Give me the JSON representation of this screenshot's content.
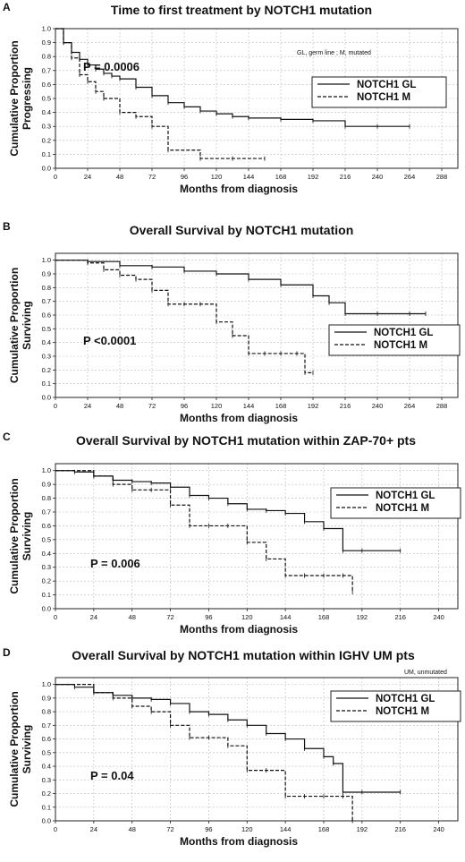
{
  "chart_data": [
    {
      "type": "line",
      "panel": "A",
      "title": "Time to first treatment by NOTCH1 mutation",
      "xlabel": "Months from diagnosis",
      "ylabel": "Cumulative Proportion Progressing",
      "ylabel_lines": [
        "Cumulative Proportion",
        "Progressing"
      ],
      "xlim": [
        0,
        300
      ],
      "x_ticks": [
        0,
        24,
        48,
        72,
        96,
        120,
        144,
        168,
        192,
        216,
        240,
        264,
        288
      ],
      "ylim": [
        0,
        1
      ],
      "y_ticks": [
        "0.0",
        "0.1",
        "0.2",
        "0.3",
        "0.4",
        "0.5",
        "0.6",
        "0.7",
        "0.8",
        "0.9",
        "1.0"
      ],
      "note": "GL, germ line ; M, mutated",
      "p_value": "P = 0.0006",
      "grid": true,
      "legend_position": "upper right",
      "series": [
        {
          "name": "NOTCH1 GL",
          "style": "solid",
          "x": [
            0,
            6,
            12,
            18,
            24,
            30,
            36,
            42,
            48,
            60,
            72,
            84,
            96,
            108,
            120,
            132,
            144,
            168,
            192,
            216,
            240,
            264
          ],
          "y": [
            1.0,
            0.9,
            0.83,
            0.78,
            0.74,
            0.71,
            0.68,
            0.66,
            0.64,
            0.58,
            0.52,
            0.47,
            0.44,
            0.41,
            0.39,
            0.37,
            0.36,
            0.35,
            0.34,
            0.3,
            0.3,
            0.3
          ]
        },
        {
          "name": "NOTCH1 M",
          "style": "dashed",
          "x": [
            0,
            6,
            12,
            18,
            24,
            30,
            36,
            48,
            60,
            72,
            84,
            108,
            132,
            156
          ],
          "y": [
            1.0,
            0.9,
            0.79,
            0.67,
            0.62,
            0.55,
            0.5,
            0.4,
            0.37,
            0.3,
            0.13,
            0.07,
            0.07,
            0.07
          ]
        }
      ]
    },
    {
      "type": "line",
      "panel": "B",
      "title": "Overall Survival by NOTCH1 mutation",
      "xlabel": "Months from diagnosis",
      "ylabel": "Cumulative Proportion Surviving",
      "ylabel_lines": [
        "Cumulative Proportion",
        "Surviving"
      ],
      "xlim": [
        0,
        300
      ],
      "x_ticks": [
        0,
        24,
        48,
        72,
        96,
        120,
        144,
        168,
        192,
        216,
        240,
        264,
        288
      ],
      "ylim": [
        0,
        1.05
      ],
      "y_ticks": [
        "0.0",
        "0.1",
        "0.2",
        "0.3",
        "0.4",
        "0.5",
        "0.6",
        "0.7",
        "0.8",
        "0.9",
        "1.0"
      ],
      "p_value": "P <0.0001",
      "grid": true,
      "legend_position": "lower right",
      "series": [
        {
          "name": "NOTCH1 GL",
          "style": "solid",
          "x": [
            0,
            24,
            48,
            72,
            96,
            120,
            144,
            168,
            192,
            204,
            216,
            240,
            264,
            276
          ],
          "y": [
            1.0,
            0.99,
            0.96,
            0.95,
            0.92,
            0.9,
            0.86,
            0.82,
            0.74,
            0.69,
            0.61,
            0.61,
            0.61,
            0.61
          ]
        },
        {
          "name": "NOTCH1 M",
          "style": "dashed",
          "x": [
            0,
            24,
            36,
            48,
            60,
            72,
            84,
            96,
            108,
            120,
            132,
            144,
            156,
            168,
            180,
            186,
            192
          ],
          "y": [
            1.0,
            0.98,
            0.93,
            0.89,
            0.86,
            0.78,
            0.68,
            0.68,
            0.68,
            0.55,
            0.45,
            0.32,
            0.32,
            0.32,
            0.32,
            0.18,
            0.18
          ]
        }
      ]
    },
    {
      "type": "line",
      "panel": "C",
      "title": "Overall Survival by NOTCH1 mutation within ZAP-70+ pts",
      "xlabel": "Months from diagnosis",
      "ylabel": "Cumulative Proportion Surviving",
      "ylabel_lines": [
        "Cumulative Proportion",
        "Surviving"
      ],
      "xlim": [
        0,
        252
      ],
      "x_ticks": [
        0,
        24,
        48,
        72,
        96,
        120,
        144,
        168,
        192,
        216,
        240
      ],
      "ylim": [
        0,
        1.05
      ],
      "y_ticks": [
        "0.0",
        "0.1",
        "0.2",
        "0.3",
        "0.4",
        "0.5",
        "0.6",
        "0.7",
        "0.8",
        "0.9",
        "1.0"
      ],
      "p_value": "P = 0.006",
      "grid": true,
      "legend_position": "upper right",
      "series": [
        {
          "name": "NOTCH1 GL",
          "style": "solid",
          "x": [
            0,
            12,
            24,
            36,
            48,
            60,
            72,
            84,
            96,
            108,
            120,
            132,
            144,
            156,
            168,
            180,
            192,
            216
          ],
          "y": [
            1.0,
            0.99,
            0.96,
            0.93,
            0.92,
            0.91,
            0.88,
            0.82,
            0.8,
            0.76,
            0.72,
            0.71,
            0.69,
            0.63,
            0.58,
            0.42,
            0.42,
            0.42
          ]
        },
        {
          "name": "NOTCH1 M",
          "style": "dashed",
          "x": [
            0,
            24,
            36,
            48,
            60,
            72,
            84,
            96,
            108,
            120,
            132,
            144,
            156,
            168,
            180,
            186
          ],
          "y": [
            1.0,
            0.96,
            0.9,
            0.86,
            0.86,
            0.75,
            0.6,
            0.6,
            0.6,
            0.48,
            0.36,
            0.24,
            0.24,
            0.24,
            0.24,
            0.12
          ]
        }
      ]
    },
    {
      "type": "line",
      "panel": "D",
      "title": "Overall Survival by NOTCH1 mutation within IGHV UM pts",
      "xlabel": "Months from diagnosis",
      "ylabel": "Cumulative Proportion Surviving",
      "ylabel_lines": [
        "Cumulative Proportion",
        "Surviving"
      ],
      "xlim": [
        0,
        252
      ],
      "x_ticks": [
        0,
        24,
        48,
        72,
        96,
        120,
        144,
        168,
        192,
        216,
        240
      ],
      "ylim": [
        0,
        1.05
      ],
      "y_ticks": [
        "0.0",
        "0.1",
        "0.2",
        "0.3",
        "0.4",
        "0.5",
        "0.6",
        "0.7",
        "0.8",
        "0.9",
        "1.0"
      ],
      "note": "UM, unmutated",
      "p_value": "P = 0.04",
      "grid": true,
      "legend_position": "upper right",
      "series": [
        {
          "name": "NOTCH1 GL",
          "style": "solid",
          "x": [
            0,
            12,
            24,
            36,
            48,
            60,
            72,
            84,
            96,
            108,
            120,
            132,
            144,
            156,
            168,
            174,
            180,
            192,
            216
          ],
          "y": [
            1.0,
            0.98,
            0.94,
            0.92,
            0.9,
            0.89,
            0.86,
            0.8,
            0.78,
            0.74,
            0.7,
            0.64,
            0.6,
            0.53,
            0.47,
            0.42,
            0.21,
            0.21,
            0.21
          ]
        },
        {
          "name": "NOTCH1 M",
          "style": "dashed",
          "x": [
            0,
            24,
            36,
            48,
            60,
            72,
            84,
            96,
            108,
            120,
            132,
            144,
            156,
            168,
            180,
            186
          ],
          "y": [
            1.0,
            0.94,
            0.9,
            0.84,
            0.8,
            0.7,
            0.61,
            0.61,
            0.55,
            0.37,
            0.37,
            0.18,
            0.18,
            0.18,
            0.18,
            0.0
          ]
        }
      ]
    }
  ]
}
